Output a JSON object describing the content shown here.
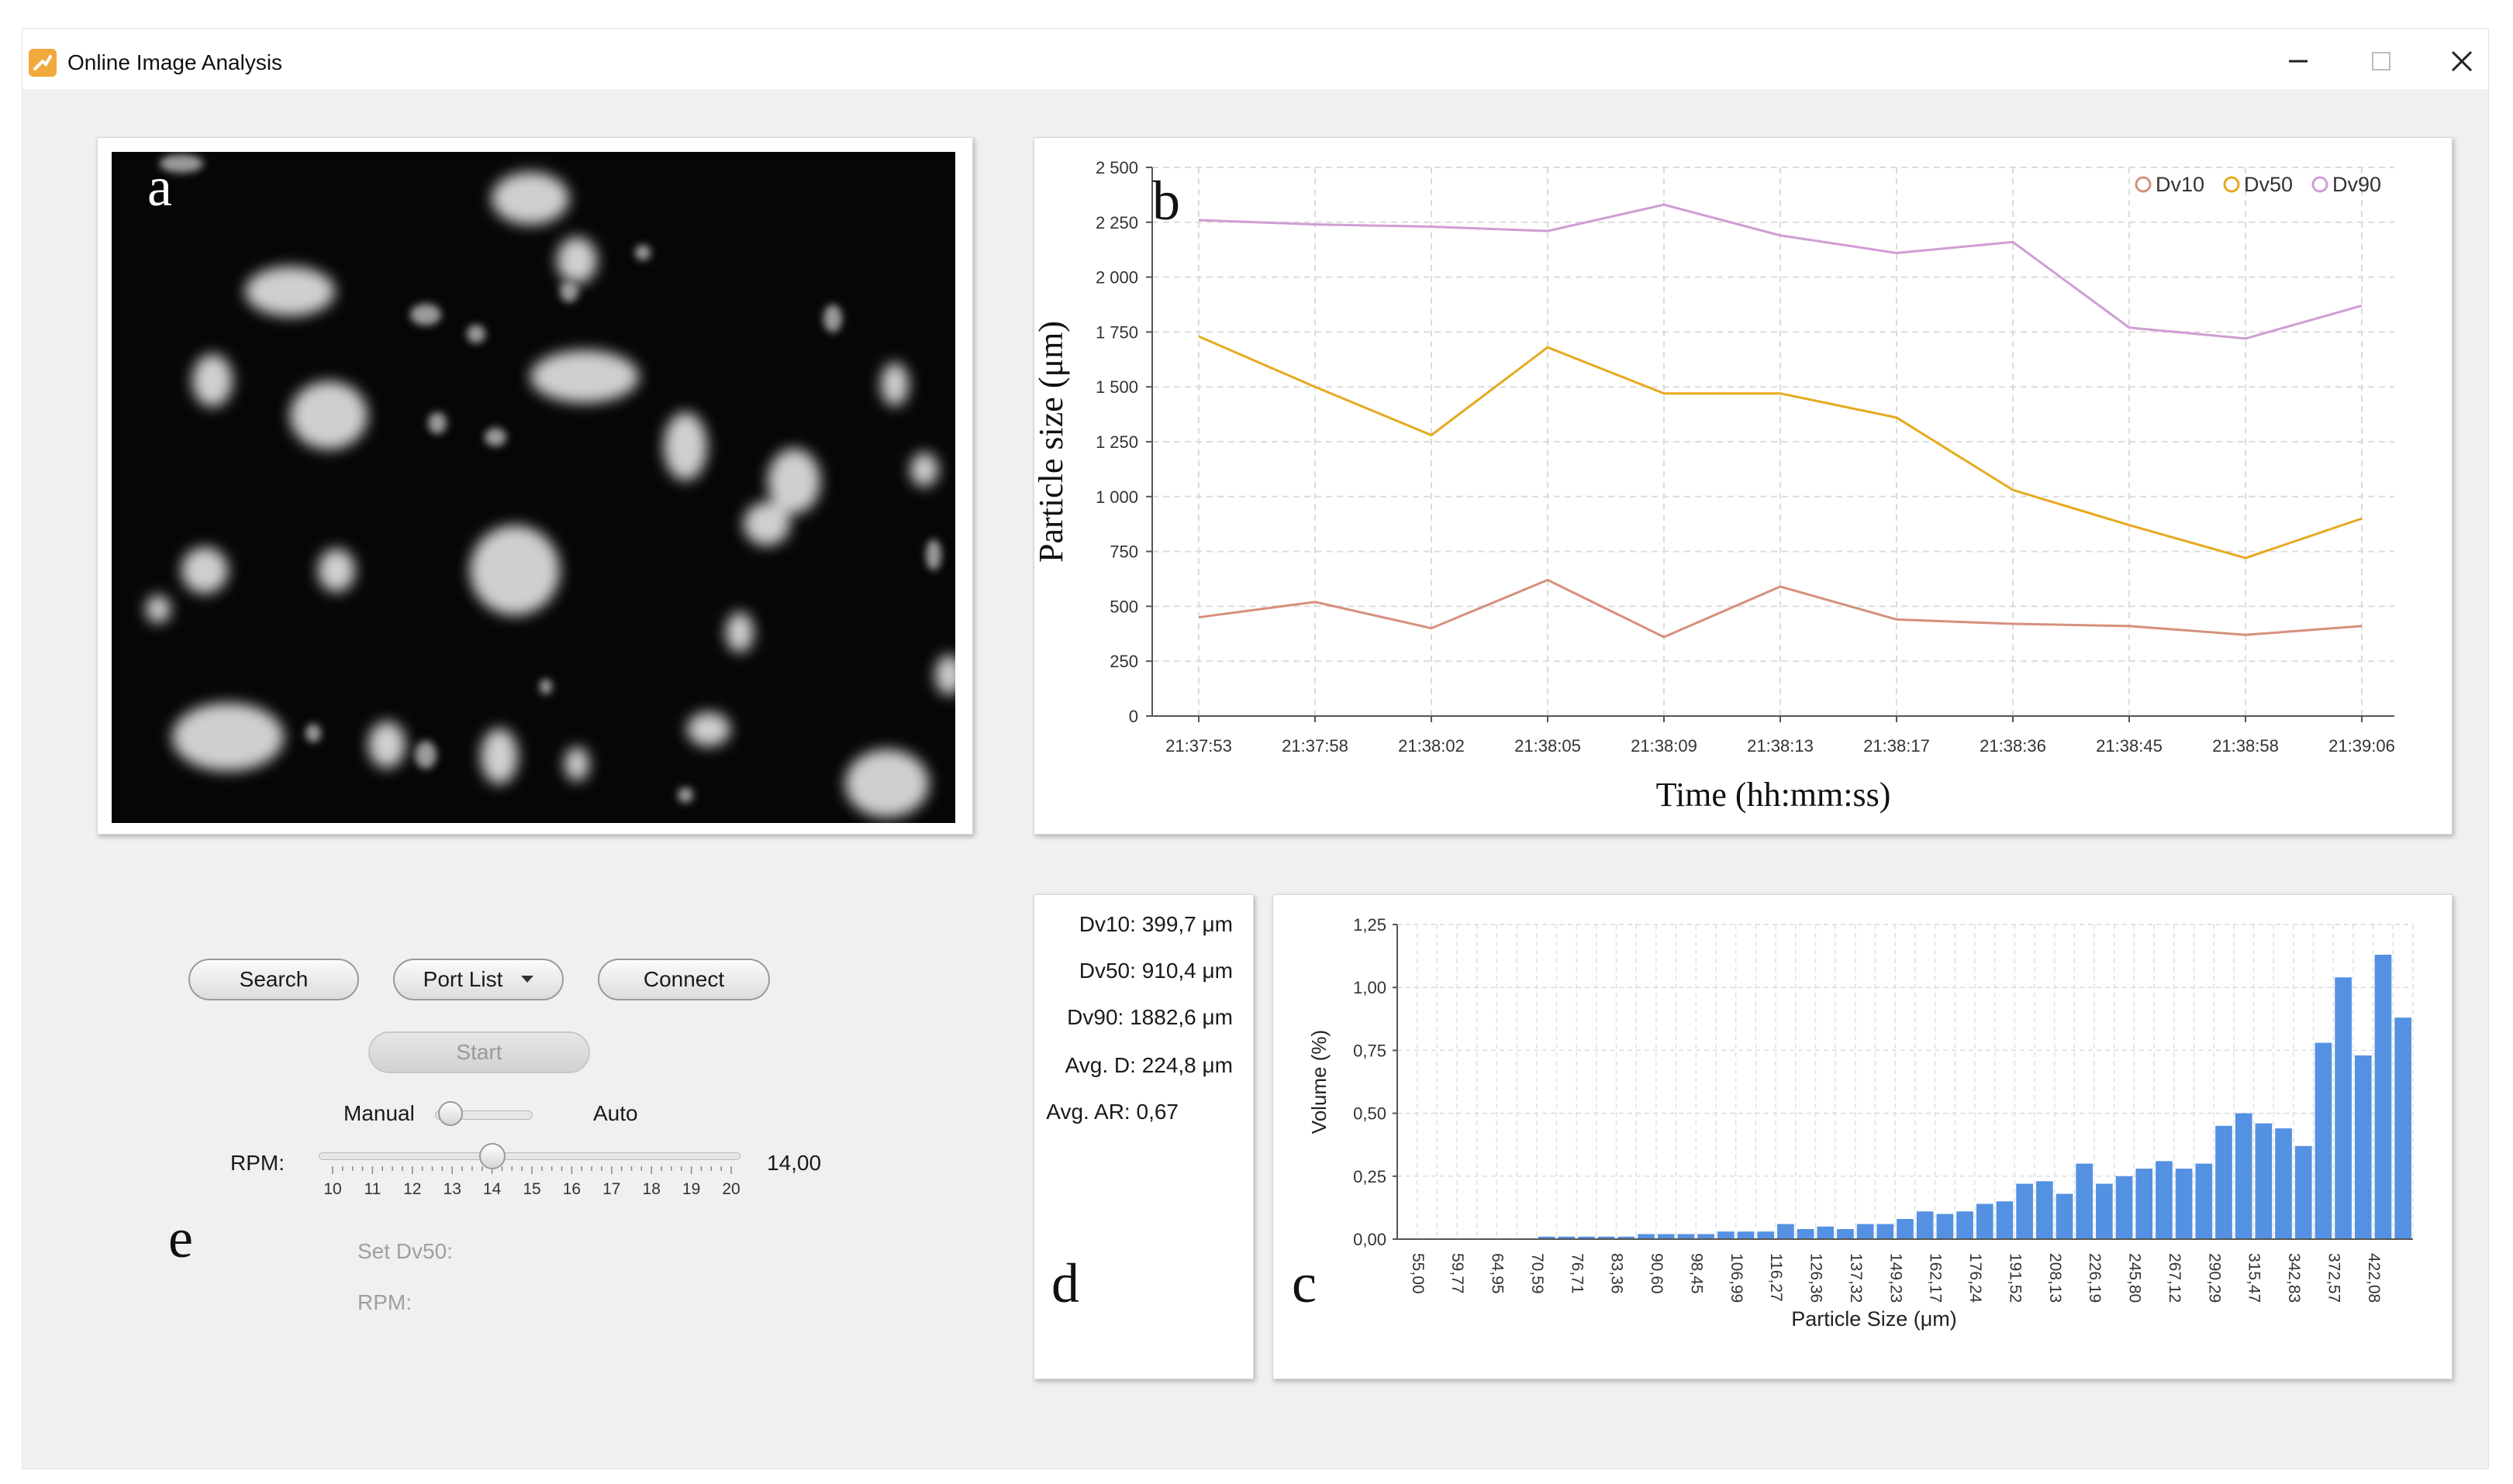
{
  "app": {
    "title": "Online Image Analysis"
  },
  "window_controls": {
    "minimize": "—",
    "maximize": "☐",
    "close": "✕"
  },
  "colors": {
    "dv10": "#d6907c",
    "dv50": "#e7a91f",
    "dv90": "#cf9dd4",
    "histogram": "#5591e2"
  },
  "panel_letters": {
    "a": "a",
    "b": "b",
    "c": "c",
    "d": "d",
    "e": "e"
  },
  "camera": {
    "image": "grayscale-particle-image"
  },
  "line_chart": {
    "xlabel": "Time (hh:mm:ss)",
    "ylabel": "Particle size (μm)",
    "legend": [
      "Dv10",
      "Dv50",
      "Dv90"
    ],
    "yticks": [
      "0",
      "250",
      "500",
      "750",
      "1 000",
      "1 250",
      "1 500",
      "1 750",
      "2 000",
      "2 250",
      "2 500"
    ]
  },
  "stats": {
    "dv10_label": "Dv10:",
    "dv10_value": "399,7 μm",
    "dv50_label": "Dv50:",
    "dv50_value": "910,4 μm",
    "dv90_label": "Dv90:",
    "dv90_value": "1882,6 μm",
    "avgd_label": "Avg. D:",
    "avgd_value": "224,8 μm",
    "avgar_label": "Avg. AR:",
    "avgar_value": "0,67"
  },
  "histogram": {
    "xlabel": "Particle Size (μm)",
    "ylabel": "Volume (%)",
    "yticks": [
      "0,00",
      "0,25",
      "0,50",
      "0,75",
      "1,00",
      "1,25"
    ]
  },
  "controls": {
    "search_label": "Search",
    "port_list_label": "Port List",
    "connect_label": "Connect",
    "start_label": "Start",
    "manual_label": "Manual",
    "auto_label": "Auto",
    "rpm_label": "RPM:",
    "rpm_value": "14,00",
    "rpm_ticks": [
      "10",
      "11",
      "12",
      "13",
      "14",
      "15",
      "16",
      "17",
      "18",
      "19",
      "20"
    ],
    "set_dv50_label": "Set Dv50:",
    "rpm2_label": "RPM:"
  },
  "chart_data": [
    {
      "type": "line",
      "title": "",
      "xlabel": "Time (hh:mm:ss)",
      "ylabel": "Particle size (μm)",
      "ylim": [
        0,
        2500
      ],
      "grid": true,
      "legend_position": "top-right",
      "x": [
        "21:37:53",
        "21:37:58",
        "21:38:02",
        "21:38:05",
        "21:38:09",
        "21:38:13",
        "21:38:17",
        "21:38:36",
        "21:38:45",
        "21:38:58",
        "21:39:06"
      ],
      "series": [
        {
          "name": "Dv10",
          "values": [
            450,
            520,
            400,
            620,
            360,
            590,
            440,
            420,
            410,
            370,
            410
          ]
        },
        {
          "name": "Dv50",
          "values": [
            1730,
            1500,
            1280,
            1680,
            1470,
            1470,
            1360,
            1030,
            870,
            720,
            900
          ]
        },
        {
          "name": "Dv90",
          "values": [
            2260,
            2240,
            2230,
            2210,
            2330,
            2190,
            2110,
            2160,
            1770,
            1720,
            1870
          ]
        }
      ]
    },
    {
      "type": "bar",
      "title": "",
      "xlabel": "Particle Size (μm)",
      "ylabel": "Volume (%)",
      "ylim": [
        0,
        1.25
      ],
      "grid": true,
      "x_tick_labels": [
        "55,00",
        "59,77",
        "64,95",
        "70,59",
        "76,71",
        "83,36",
        "90,60",
        "98,45",
        "106,99",
        "116,27",
        "126,36",
        "137,32",
        "149,23",
        "162,17",
        "176,24",
        "191,52",
        "208,13",
        "226,19",
        "245,80",
        "267,12",
        "290,29",
        "315,47",
        "342,83",
        "372,57",
        "422,08"
      ],
      "values": [
        0.0,
        0.0,
        0.0,
        0.0,
        0.0,
        0.0,
        0.0,
        0.01,
        0.01,
        0.01,
        0.01,
        0.01,
        0.02,
        0.02,
        0.02,
        0.02,
        0.03,
        0.03,
        0.03,
        0.06,
        0.04,
        0.05,
        0.04,
        0.06,
        0.06,
        0.08,
        0.11,
        0.1,
        0.11,
        0.14,
        0.15,
        0.22,
        0.23,
        0.18,
        0.3,
        0.22,
        0.25,
        0.28,
        0.31,
        0.28,
        0.3,
        0.45,
        0.5,
        0.46,
        0.44,
        0.37,
        0.78,
        1.04,
        0.73,
        1.13,
        0.88
      ]
    }
  ]
}
